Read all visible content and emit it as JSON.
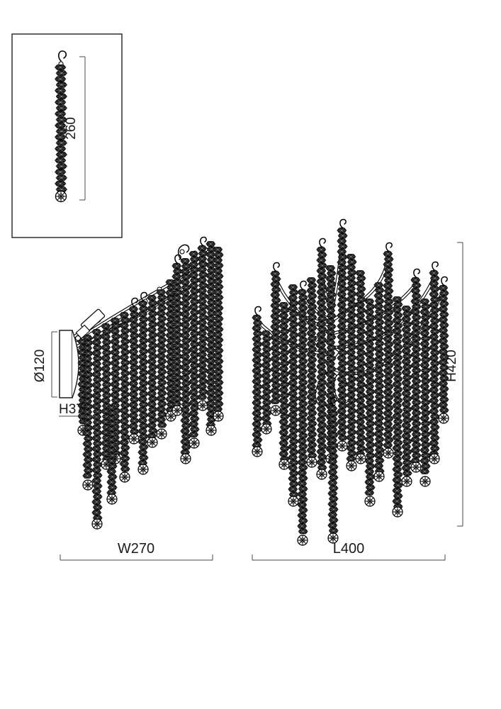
{
  "drawing": {
    "background": "#ffffff",
    "ink_color": "#111111",
    "dim_color": "#1a1a1a",
    "inset": {
      "dimension_label": "260"
    },
    "side_view": {
      "diameter_label": "Ø120",
      "height_label": "H37",
      "width_label": "W270"
    },
    "front_view": {
      "height_label": "H420",
      "length_label": "L400"
    }
  }
}
